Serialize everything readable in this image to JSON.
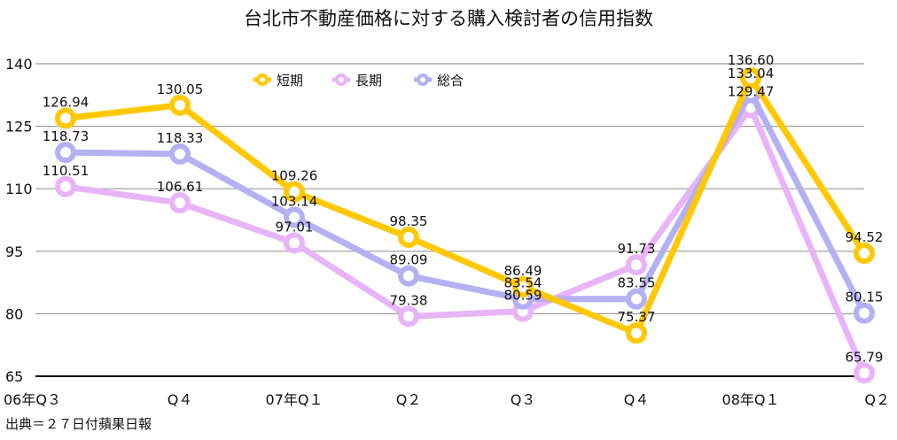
{
  "chart_data": {
    "type": "line",
    "title": "台北市不動産価格に対する購入検討者の信用指数",
    "categories": [
      "06年Q３",
      "Q４",
      "07年Q１",
      "Q２",
      "Q３",
      "Q４",
      "08年Q１",
      "Q２"
    ],
    "ylim": [
      65,
      140
    ],
    "yticks": [
      140,
      125,
      110,
      95,
      80,
      65
    ],
    "grid": true,
    "legend_position": "top-center",
    "series": [
      {
        "name": "短期",
        "color": "#FFC800",
        "values": [
          126.94,
          130.05,
          109.26,
          98.35,
          86.49,
          75.37,
          136.6,
          94.52
        ]
      },
      {
        "name": "長期",
        "color": "#E8B4F8",
        "values": [
          110.51,
          106.61,
          97.01,
          79.38,
          80.59,
          91.73,
          129.47,
          65.79
        ]
      },
      {
        "name": "総合",
        "color": "#B4B0F2",
        "values": [
          118.73,
          118.33,
          103.14,
          89.09,
          83.54,
          83.55,
          133.04,
          80.15
        ]
      }
    ],
    "source": "出典＝２７日付蘋果日報"
  }
}
